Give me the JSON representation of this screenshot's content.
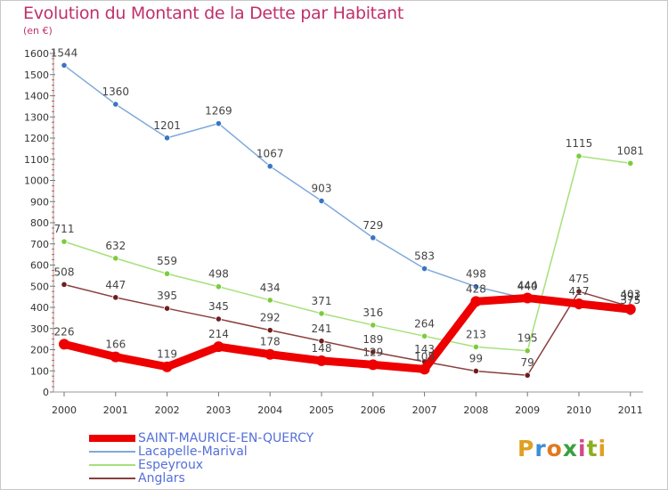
{
  "header": {
    "title": "Evolution du Montant de la Dette par Habitant",
    "subtitle": "(en €)"
  },
  "logo": {
    "text": "Proxiti",
    "colors": [
      "#e0a020",
      "#3a8fd8",
      "#e07a20",
      "#3aa040",
      "#d04a8a",
      "#8ab020",
      "#e0a020"
    ]
  },
  "chart_data": {
    "type": "line",
    "title": "Evolution du Montant de la Dette par Habitant",
    "ylabel": "(en €)",
    "xlabel": "",
    "x": [
      "2000",
      "2001",
      "2002",
      "2003",
      "2004",
      "2005",
      "2006",
      "2007",
      "2008",
      "2009",
      "2010",
      "2011"
    ],
    "ylim": [
      0,
      1600
    ],
    "yticks": [
      0,
      100,
      200,
      300,
      400,
      500,
      600,
      700,
      800,
      900,
      1000,
      1100,
      1200,
      1300,
      1400,
      1500,
      1600
    ],
    "grid": false,
    "legend_position": "bottom-left",
    "series": [
      {
        "name": "SAINT-MAURICE-EN-QUERCY",
        "color": "#ee0000",
        "marker_color": "#ee0000",
        "thick": true,
        "values": [
          226,
          166,
          119,
          214,
          178,
          148,
          129,
          108,
          428,
          444,
          417,
          391
        ],
        "labels": [
          "226",
          "166",
          "119",
          "214",
          "178",
          "148",
          "129",
          "108",
          "428",
          "444",
          "417",
          "391"
        ]
      },
      {
        "name": "Lacapelle-Marival",
        "color": "#7eaadb",
        "marker_color": "#3a74c4",
        "thick": false,
        "values": [
          1544,
          1360,
          1201,
          1269,
          1067,
          903,
          729,
          583,
          498,
          440,
          402,
          375
        ],
        "labels": [
          "1544",
          "1360",
          "1201",
          "1269",
          "1067",
          "903",
          "729",
          "583",
          "498",
          "440",
          "",
          "375"
        ]
      },
      {
        "name": "Espeyroux",
        "color": "#a6e07a",
        "marker_color": "#7ccc3c",
        "thick": false,
        "values": [
          711,
          632,
          559,
          498,
          434,
          371,
          316,
          264,
          213,
          195,
          1115,
          1081
        ],
        "labels": [
          "711",
          "632",
          "559",
          "498",
          "434",
          "371",
          "316",
          "264",
          "213",
          "195",
          "1115",
          "1081"
        ]
      },
      {
        "name": "Anglars",
        "color": "#8b3e3e",
        "marker_color": "#6e1e1e",
        "thick": false,
        "values": [
          508,
          447,
          395,
          345,
          292,
          241,
          189,
          143,
          99,
          79,
          475,
          403
        ],
        "labels": [
          "508",
          "447",
          "395",
          "345",
          "292",
          "241",
          "189",
          "143",
          "99",
          "79",
          "475",
          "403"
        ]
      }
    ]
  }
}
